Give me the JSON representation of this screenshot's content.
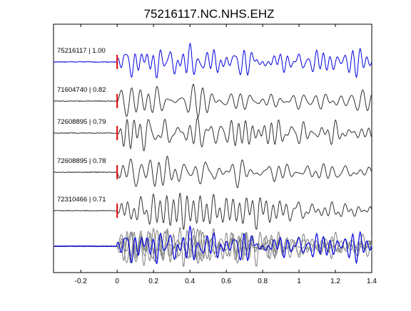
{
  "chart_data": {
    "type": "line",
    "title": "75216117.NC.NHS.EHZ",
    "xlabel": "",
    "ylabel": "",
    "xlim": [
      -0.35,
      1.4
    ],
    "xticks": [
      "-0.2",
      "0",
      "0.2",
      "0.4",
      "0.6",
      "0.8",
      "1",
      "1.2",
      "1.4"
    ],
    "xtick_values": [
      -0.2,
      0,
      0.2,
      0.4,
      0.6,
      0.8,
      1.0,
      1.2,
      1.4
    ],
    "pick_time": 0,
    "pick_color": "#e00000",
    "grid": false,
    "series": [
      {
        "label": "75216117 | 1.00",
        "color": "#0000e0",
        "seed": 1
      },
      {
        "label": "71604740 | 0.82",
        "color": "#303030",
        "seed": 2
      },
      {
        "label": "72608895 | 0.79",
        "color": "#303030",
        "seed": 3
      },
      {
        "label": "72608895 | 0.78",
        "color": "#303030",
        "seed": 4
      },
      {
        "label": "72310466 | 0.71",
        "color": "#303030",
        "seed": 5
      }
    ],
    "stack": {
      "reference_color": "#0000e0",
      "overlay_color": "#808080"
    }
  }
}
